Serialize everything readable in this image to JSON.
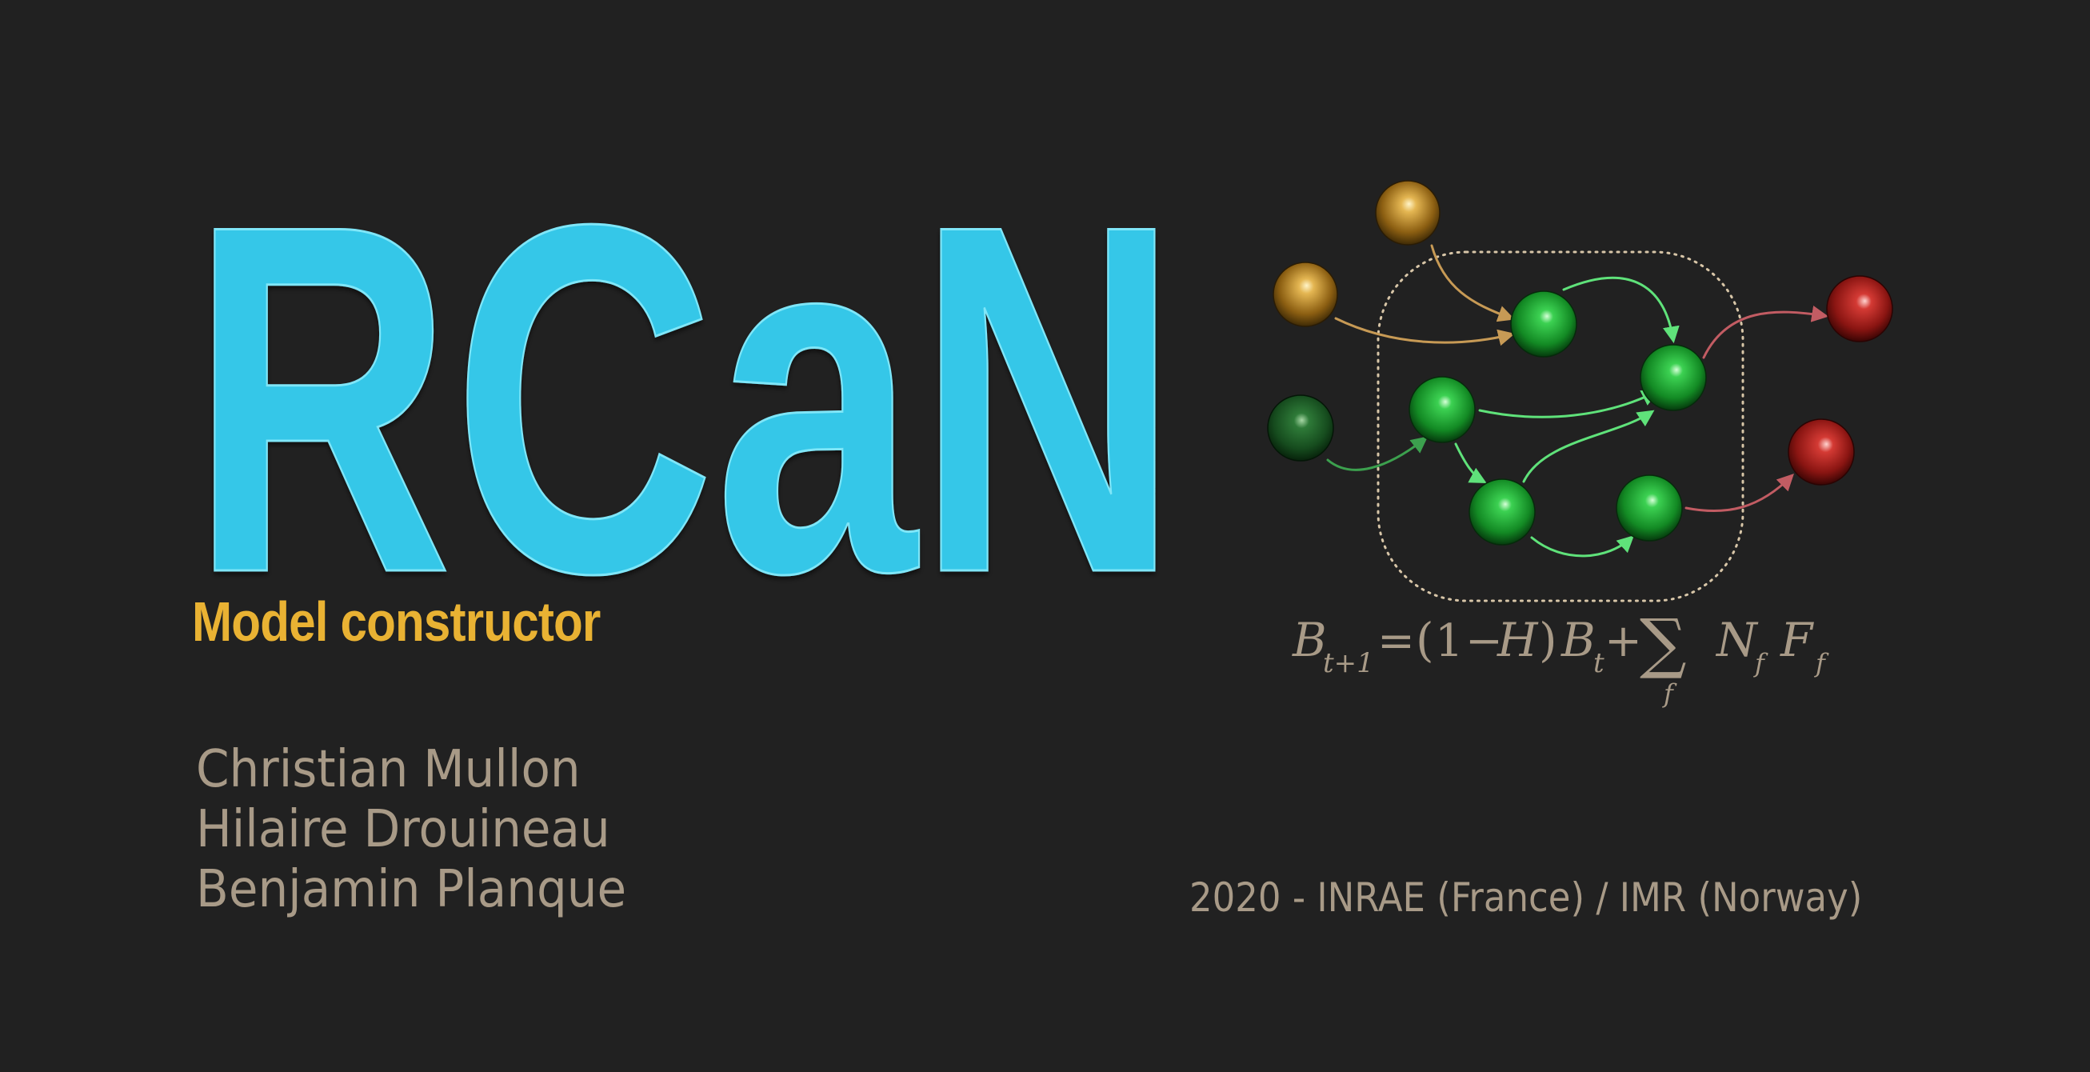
{
  "logo": {
    "text": "RCaN",
    "color": "#35C7E8",
    "outline": "#7FE6F8"
  },
  "subtitle": {
    "text": "Model constructor",
    "color": "#E9B233"
  },
  "authors": [
    "Christian Mullon",
    "Hilaire Drouineau",
    "Benjamin Planque"
  ],
  "credit": "2020 - INRAE (France) / IMR (Norway)",
  "text_color": "#A89A87",
  "formula": {
    "B": "B",
    "t1": "t+1",
    "eq": "=",
    "open": "(",
    "one": "1",
    "minus": "−",
    "H": "H",
    "close": ")",
    "t": "t",
    "plus": "+",
    "sum": "∑",
    "f": "f",
    "N": "N",
    "F": "F"
  },
  "network": {
    "node_colors": {
      "resource": "#C9901E",
      "trophic": "#22B53A",
      "dark": "#1E6A2A",
      "sink": "#C4221F"
    },
    "box_color": "#D8C6A8"
  }
}
